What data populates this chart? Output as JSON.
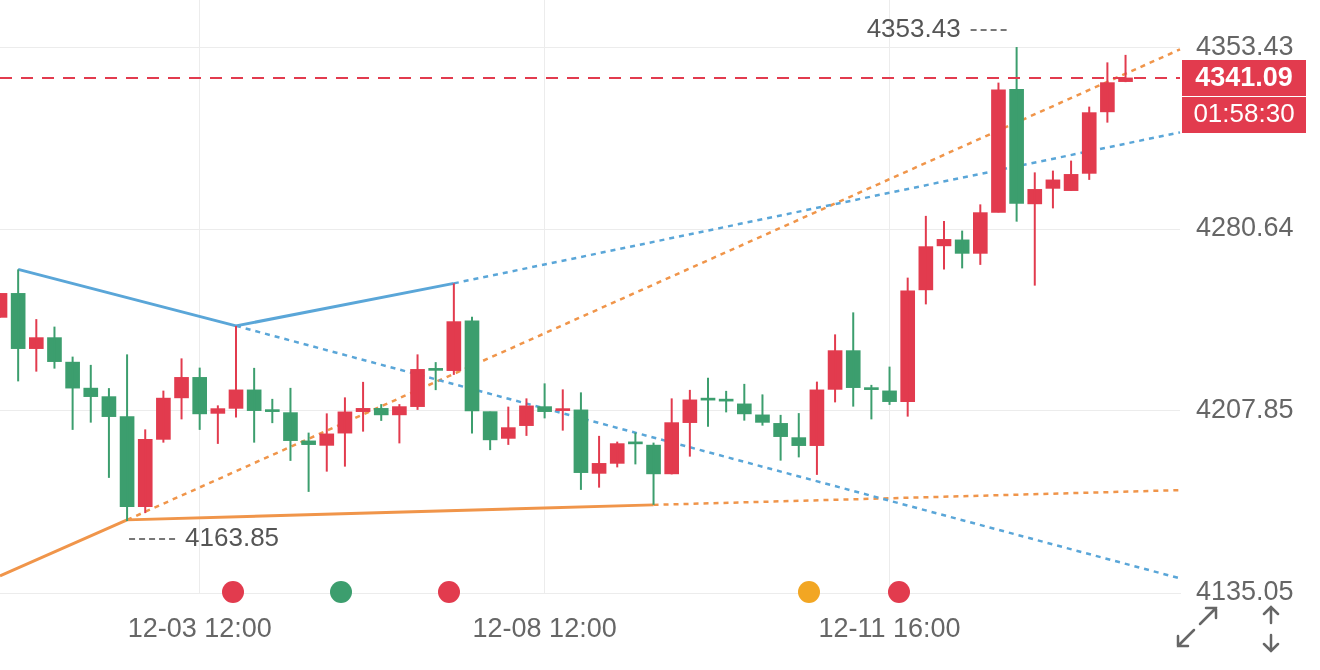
{
  "chart_data": {
    "type": "candlestick",
    "categories": [
      null,
      null,
      null,
      null,
      null,
      null,
      null,
      null,
      null,
      null,
      null,
      "12-03 12:00",
      null,
      null,
      null,
      null,
      null,
      null,
      null,
      null,
      null,
      null,
      null,
      null,
      null,
      null,
      null,
      null,
      null,
      null,
      "12-08 12:00",
      null,
      null,
      null,
      null,
      null,
      null,
      null,
      null,
      null,
      null,
      null,
      null,
      null,
      null,
      null,
      null,
      null,
      null,
      "12-11 16:00",
      null,
      null,
      null,
      null,
      null,
      null,
      null,
      null,
      null,
      null,
      null,
      null,
      null,
      null,
      null,
      null
    ],
    "ohlc": [
      [
        4245.3,
        4254.9,
        4245.3,
        4254.9
      ],
      [
        4254.9,
        4264.5,
        4219.7,
        4232.8
      ],
      [
        4232.8,
        4244.6,
        4223.6,
        4237.2
      ],
      [
        4237.2,
        4241.6,
        4224.8,
        4227.6
      ],
      [
        4227.4,
        4229.6,
        4200.3,
        4217.0
      ],
      [
        4217.0,
        4226.3,
        4203.2,
        4213.6
      ],
      [
        4213.6,
        4217.0,
        4181.1,
        4205.6
      ],
      [
        4205.6,
        4230.5,
        4163.85,
        4169.6
      ],
      [
        4169.6,
        4200.5,
        4167.0,
        4196.5
      ],
      [
        4196.5,
        4216.0,
        4195.2,
        4213.0
      ],
      [
        4213.1,
        4228.9,
        4204.5,
        4221.3
      ],
      [
        4221.3,
        4225.2,
        4200.3,
        4206.7
      ],
      [
        4206.9,
        4210.1,
        4194.7,
        4208.8
      ],
      [
        4208.9,
        4241.9,
        4205.3,
        4216.3
      ],
      [
        4216.3,
        4225.1,
        4195.2,
        4208.0
      ],
      [
        4207.8,
        4212.7,
        4203.0,
        4207.6
      ],
      [
        4207.2,
        4217.1,
        4187.9,
        4196.0
      ],
      [
        4195.9,
        4199.2,
        4175.5,
        4194.4
      ],
      [
        4194.1,
        4206.9,
        4183.6,
        4198.7
      ],
      [
        4199.0,
        4213.3,
        4185.6,
        4207.5
      ],
      [
        4207.6,
        4219.5,
        4199.6,
        4208.9
      ],
      [
        4208.9,
        4210.6,
        4203.9,
        4206.3
      ],
      [
        4206.3,
        4210.6,
        4194.9,
        4209.6
      ],
      [
        4209.6,
        4230.5,
        4208.3,
        4224.5
      ],
      [
        4224.3,
        4227.4,
        4216.2,
        4224.1
      ],
      [
        4224.0,
        4258.9,
        4222.3,
        4243.6
      ],
      [
        4243.9,
        4245.6,
        4198.9,
        4207.9
      ],
      [
        4207.6,
        4207.6,
        4192.2,
        4196.3
      ],
      [
        4196.9,
        4209.6,
        4194.3,
        4201.2
      ],
      [
        4202.0,
        4212.9,
        4197.9,
        4209.9
      ],
      [
        4209.6,
        4218.9,
        4204.9,
        4207.6
      ],
      [
        4208.0,
        4216.5,
        4200.0,
        4208.2
      ],
      [
        4208.3,
        4215.3,
        4176.3,
        4183.2
      ],
      [
        4182.9,
        4197.9,
        4177.2,
        4186.9
      ],
      [
        4186.9,
        4195.6,
        4185.3,
        4194.8
      ],
      [
        4194.9,
        4199.2,
        4186.5,
        4194.7
      ],
      [
        4194.2,
        4195.2,
        4170.3,
        4182.7
      ],
      [
        4182.7,
        4212.9,
        4182.5,
        4203.2
      ],
      [
        4203.2,
        4216.3,
        4189.6,
        4212.3
      ],
      [
        4212.4,
        4221.2,
        4201.6,
        4212.2
      ],
      [
        4212.0,
        4215.9,
        4207.3,
        4211.8
      ],
      [
        4210.7,
        4218.7,
        4204.0,
        4206.7
      ],
      [
        4206.3,
        4214.5,
        4202.0,
        4203.3
      ],
      [
        4202.9,
        4206.3,
        4188.0,
        4197.6
      ],
      [
        4197.2,
        4207.0,
        4189.3,
        4194.0
      ],
      [
        4194.0,
        4219.6,
        4182.3,
        4216.3
      ],
      [
        4216.5,
        4238.5,
        4211.3,
        4232.0
      ],
      [
        4232.0,
        4247.3,
        4209.6,
        4217.2
      ],
      [
        4216.6,
        4218.3,
        4204.5,
        4216.4
      ],
      [
        4215.9,
        4225.6,
        4210.3,
        4211.6
      ],
      [
        4211.6,
        4261.2,
        4205.6,
        4255.9
      ],
      [
        4256.3,
        4285.9,
        4250.5,
        4273.6
      ],
      [
        4273.9,
        4283.9,
        4264.5,
        4276.5
      ],
      [
        4276.3,
        4280.0,
        4264.9,
        4270.9
      ],
      [
        4270.9,
        4290.5,
        4266.3,
        4287.2
      ],
      [
        4287.3,
        4339.2,
        4287.3,
        4336.3
      ],
      [
        4336.5,
        4353.43,
        4283.6,
        4290.9
      ],
      [
        4290.7,
        4303.3,
        4258.0,
        4296.5
      ],
      [
        4296.9,
        4304.0,
        4288.9,
        4300.3
      ],
      [
        4296.0,
        4308.0,
        4295.9,
        4302.5
      ],
      [
        4302.9,
        4329.6,
        4300.3,
        4327.2
      ],
      [
        4327.5,
        4347.3,
        4323.2,
        4339.2
      ],
      [
        4339.6,
        4350.3,
        4339.4,
        4341.09
      ],
      null,
      null,
      null
    ],
    "colors": [
      "#e23b4e",
      "#3c9e6e",
      "#e23b4e",
      "#3c9e6e",
      "#3c9e6e",
      "#3c9e6e",
      "#3c9e6e",
      "#3c9e6e",
      "#e23b4e",
      "#e23b4e",
      "#e23b4e",
      "#3c9e6e",
      "#e23b4e",
      "#e23b4e",
      "#3c9e6e",
      "#3c9e6e",
      "#3c9e6e",
      "#3c9e6e",
      "#e23b4e",
      "#e23b4e",
      "#e23b4e",
      "#3c9e6e",
      "#e23b4e",
      "#e23b4e",
      "#3c9e6e",
      "#e23b4e",
      "#3c9e6e",
      "#3c9e6e",
      "#e23b4e",
      "#e23b4e",
      "#3c9e6e",
      "#e23b4e",
      "#3c9e6e",
      "#e23b4e",
      "#e23b4e",
      "#3c9e6e",
      "#3c9e6e",
      "#e23b4e",
      "#e23b4e",
      "#3c9e6e",
      "#3c9e6e",
      "#3c9e6e",
      "#3c9e6e",
      "#3c9e6e",
      "#3c9e6e",
      "#e23b4e",
      "#e23b4e",
      "#3c9e6e",
      "#3c9e6e",
      "#3c9e6e",
      "#e23b4e",
      "#e23b4e",
      "#e23b4e",
      "#3c9e6e",
      "#e23b4e",
      "#e23b4e",
      "#3c9e6e",
      "#e23b4e",
      "#e23b4e",
      "#e23b4e",
      "#e23b4e",
      "#e23b4e",
      "#e23b4e",
      null,
      null,
      null
    ],
    "series": [
      {
        "type": "line",
        "color": "#5aa6d8",
        "line_style": "solid",
        "values": [
          null,
          4264.5,
          null,
          null,
          null,
          null,
          null,
          null,
          null,
          null,
          null,
          null,
          null,
          4241.9,
          null,
          null,
          null,
          null,
          null,
          null,
          null,
          null,
          null,
          null,
          null,
          4258.9,
          null,
          null,
          null,
          null,
          null,
          null,
          null,
          null,
          null,
          null,
          null,
          null,
          null,
          null,
          null,
          null,
          null,
          null,
          null,
          null,
          null,
          null,
          null,
          null,
          null,
          null,
          null,
          null,
          null,
          null,
          null,
          null,
          null,
          null,
          null,
          null,
          null,
          null,
          null,
          null
        ]
      },
      {
        "type": "line",
        "color": "#5aa6d8",
        "line_style": "dotted",
        "values": [
          null,
          null,
          null,
          null,
          null,
          null,
          null,
          null,
          null,
          null,
          null,
          null,
          null,
          4241.9,
          null,
          null,
          null,
          null,
          null,
          null,
          null,
          null,
          null,
          null,
          null,
          null,
          null,
          null,
          null,
          null,
          null,
          null,
          null,
          null,
          null,
          null,
          null,
          null,
          null,
          null,
          null,
          null,
          null,
          null,
          null,
          null,
          null,
          null,
          null,
          null,
          null,
          null,
          null,
          null,
          null,
          null,
          null,
          null,
          null,
          null,
          null,
          null,
          null,
          null,
          null,
          4140.9
        ]
      },
      {
        "type": "line",
        "color": "#5aa6d8",
        "line_style": "dotted",
        "values": [
          null,
          null,
          null,
          null,
          null,
          null,
          null,
          null,
          null,
          null,
          null,
          null,
          null,
          null,
          null,
          null,
          null,
          null,
          null,
          null,
          null,
          null,
          null,
          null,
          null,
          4258.9,
          null,
          null,
          null,
          null,
          null,
          null,
          null,
          null,
          null,
          null,
          null,
          null,
          null,
          null,
          null,
          null,
          null,
          null,
          null,
          null,
          null,
          null,
          null,
          null,
          null,
          null,
          null,
          null,
          null,
          null,
          null,
          null,
          null,
          null,
          null,
          null,
          null,
          null,
          null,
          4319.3
        ]
      },
      {
        "type": "line",
        "color": "#f0954a",
        "line_style": "solid",
        "values": [
          4141.9,
          null,
          null,
          null,
          null,
          null,
          null,
          4164.3,
          null,
          null,
          null,
          null,
          null,
          null,
          null,
          null,
          null,
          null,
          null,
          null,
          null,
          null,
          null,
          null,
          null,
          null,
          null,
          null,
          null,
          null,
          null,
          null,
          null,
          null,
          null,
          null,
          4170.3,
          null,
          null,
          null,
          null,
          null,
          null,
          null,
          null,
          null,
          null,
          null,
          null,
          null,
          null,
          null,
          null,
          null,
          null,
          null,
          null,
          null,
          null,
          null,
          null,
          null,
          null,
          null,
          null,
          null
        ]
      },
      {
        "type": "line",
        "color": "#f0954a",
        "line_style": "dotted",
        "values": [
          null,
          null,
          null,
          null,
          null,
          null,
          null,
          4164.3,
          null,
          null,
          null,
          null,
          null,
          null,
          null,
          null,
          null,
          null,
          null,
          null,
          null,
          null,
          null,
          null,
          null,
          null,
          null,
          null,
          null,
          null,
          null,
          null,
          null,
          null,
          null,
          null,
          null,
          null,
          null,
          null,
          null,
          null,
          null,
          null,
          null,
          null,
          null,
          null,
          null,
          null,
          null,
          null,
          null,
          null,
          null,
          null,
          null,
          null,
          null,
          null,
          null,
          null,
          null,
          null,
          null,
          4352.5
        ]
      },
      {
        "type": "line",
        "color": "#f0954a",
        "line_style": "dotted",
        "values": [
          null,
          null,
          null,
          null,
          null,
          null,
          null,
          null,
          null,
          null,
          null,
          null,
          null,
          null,
          null,
          null,
          null,
          null,
          null,
          null,
          null,
          null,
          null,
          null,
          null,
          null,
          null,
          null,
          null,
          null,
          null,
          null,
          null,
          null,
          null,
          null,
          4170.3,
          null,
          null,
          null,
          null,
          null,
          null,
          null,
          null,
          null,
          null,
          null,
          null,
          null,
          null,
          null,
          null,
          null,
          null,
          null,
          null,
          null,
          null,
          null,
          null,
          null,
          null,
          null,
          null,
          4176.2
        ]
      }
    ],
    "ylim": [
      4135.05,
      4372.25
    ],
    "yticks": [
      4135.05,
      4207.85,
      4280.64,
      4353.43
    ],
    "grid": true,
    "legend": false,
    "marker": "none",
    "ref_lines": [
      {
        "axis": "y",
        "value": 4341.09,
        "label": "4341.09",
        "color": "#e23b4e",
        "line_style": "dashed"
      }
    ],
    "annotations": [
      "4353.43",
      "4163.85",
      "01:58:30"
    ]
  }
}
